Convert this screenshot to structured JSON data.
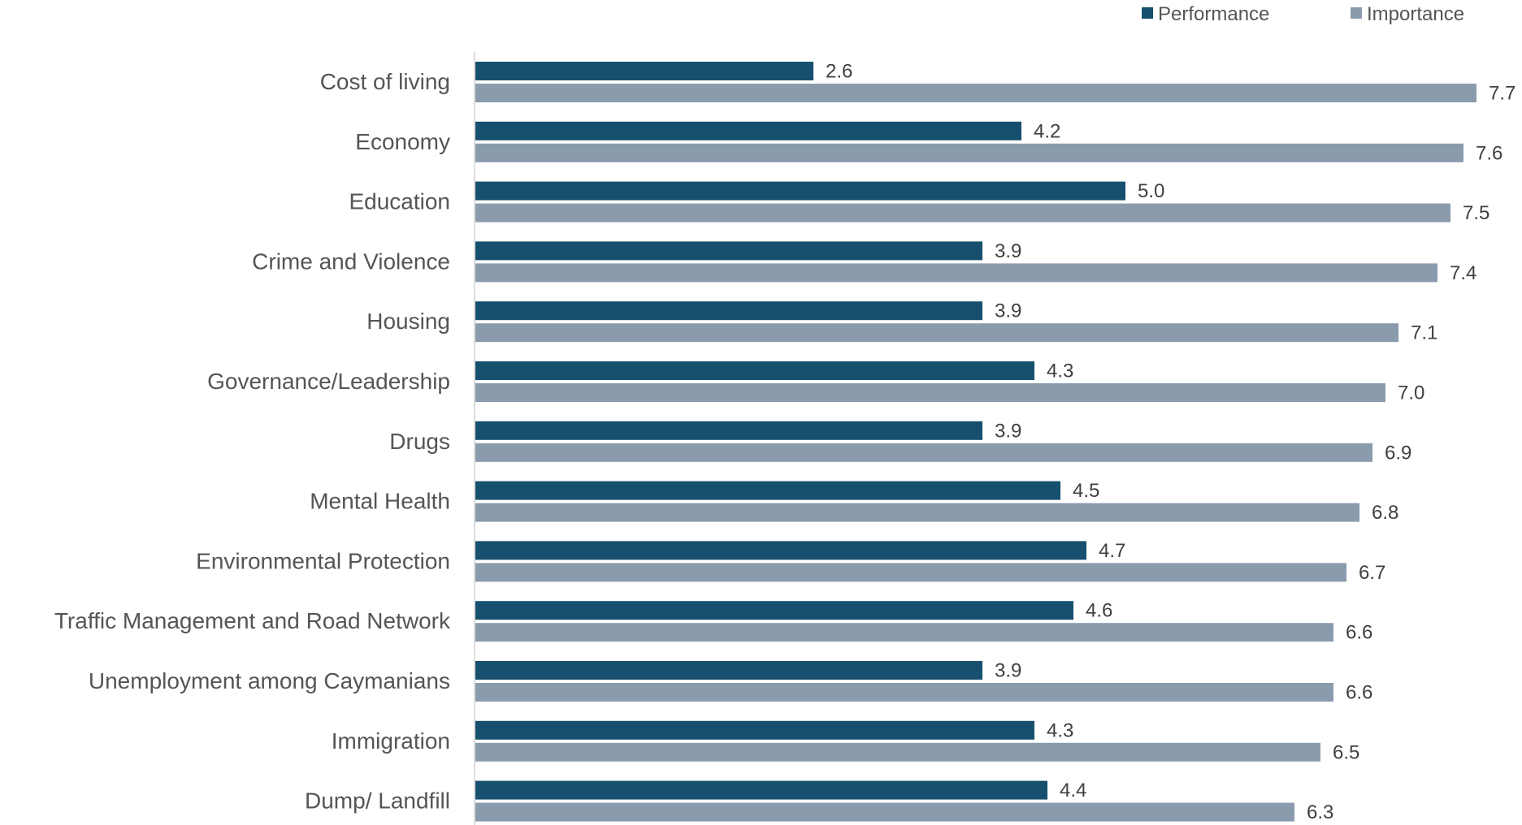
{
  "chart_data": {
    "type": "bar",
    "orientation": "horizontal",
    "categories": [
      "Cost of living",
      "Economy",
      "Education",
      "Crime and Violence",
      "Housing",
      "Governance/Leadership",
      "Drugs",
      "Mental Health",
      "Environmental Protection",
      "Traffic Management and Road Network",
      "Unemployment among Caymanians",
      "Immigration",
      "Dump/ Landfill"
    ],
    "series": [
      {
        "name": "Performance",
        "color": "#17506E",
        "values": [
          2.6,
          4.2,
          5.0,
          3.9,
          3.9,
          4.3,
          3.9,
          4.5,
          4.7,
          4.6,
          3.9,
          4.3,
          4.4
        ],
        "labels": [
          "2.6",
          "4.2",
          "5.0",
          "3.9",
          "3.9",
          "4.3",
          "3.9",
          "4.5",
          "4.7",
          "4.6",
          "3.9",
          "4.3",
          "4.4"
        ]
      },
      {
        "name": "Importance",
        "color": "#8A9BAD",
        "values": [
          7.7,
          7.6,
          7.5,
          7.4,
          7.1,
          7.0,
          6.9,
          6.8,
          6.7,
          6.6,
          6.6,
          6.5,
          6.3
        ],
        "labels": [
          "7.7",
          "7.6",
          "7.5",
          "7.4",
          "7.1",
          "7.0",
          "6.9",
          "6.8",
          "6.7",
          "6.6",
          "6.6",
          "6.5",
          "6.3"
        ]
      }
    ],
    "xlim": [
      0,
      7.7
    ],
    "grid": false,
    "legend_position": "top-right",
    "axis_color": "#D0D0D0"
  }
}
